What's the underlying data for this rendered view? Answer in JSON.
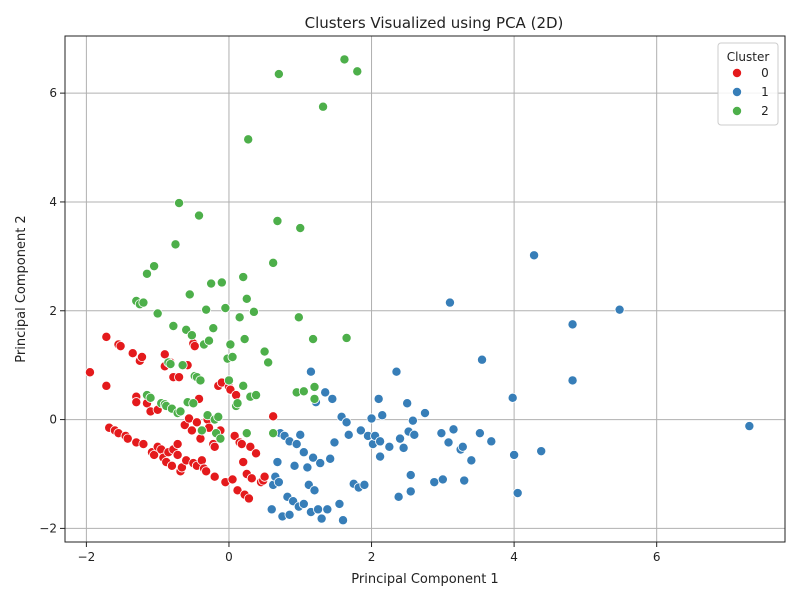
{
  "chart_data": {
    "type": "scatter",
    "title": "Clusters Visualized using PCA (2D)",
    "xlabel": "Principal Component 1",
    "ylabel": "Principal Component 2",
    "xlim": [
      -2.3,
      7.8
    ],
    "ylim": [
      -2.25,
      7.05
    ],
    "xticks": [
      -2,
      0,
      2,
      4,
      6
    ],
    "yticks": [
      -2,
      0,
      2,
      4,
      6
    ],
    "grid": true,
    "legend": {
      "title": "Cluster",
      "position": "top-right"
    },
    "series": [
      {
        "name": "0",
        "color": "#e41a1c",
        "points": [
          [
            -1.95,
            0.87
          ],
          [
            -1.72,
            1.52
          ],
          [
            -1.72,
            0.62
          ],
          [
            -1.68,
            -0.15
          ],
          [
            -1.6,
            -0.2
          ],
          [
            -1.55,
            1.38
          ],
          [
            -1.52,
            1.35
          ],
          [
            -1.55,
            -0.25
          ],
          [
            -1.45,
            -0.3
          ],
          [
            -1.42,
            -0.35
          ],
          [
            -1.35,
            1.22
          ],
          [
            -1.3,
            0.42
          ],
          [
            -1.3,
            0.32
          ],
          [
            -1.3,
            -0.42
          ],
          [
            -1.25,
            1.08
          ],
          [
            -1.22,
            1.15
          ],
          [
            -1.2,
            -0.45
          ],
          [
            -1.15,
            0.3
          ],
          [
            -1.1,
            0.15
          ],
          [
            -1.08,
            -0.6
          ],
          [
            -1.05,
            -0.65
          ],
          [
            -1.0,
            -0.5
          ],
          [
            -1.0,
            0.18
          ],
          [
            -0.95,
            -0.55
          ],
          [
            -0.92,
            -0.7
          ],
          [
            -0.9,
            1.2
          ],
          [
            -0.9,
            0.98
          ],
          [
            -0.88,
            -0.78
          ],
          [
            -0.85,
            -0.6
          ],
          [
            -0.82,
            1.05
          ],
          [
            -0.8,
            -0.85
          ],
          [
            -0.78,
            0.78
          ],
          [
            -0.78,
            -0.55
          ],
          [
            -0.72,
            -0.45
          ],
          [
            -0.72,
            -0.65
          ],
          [
            -0.7,
            0.78
          ],
          [
            -0.68,
            -0.95
          ],
          [
            -0.66,
            -0.88
          ],
          [
            -0.62,
            -0.1
          ],
          [
            -0.6,
            -0.75
          ],
          [
            -0.58,
            1.0
          ],
          [
            -0.56,
            0.02
          ],
          [
            -0.52,
            -0.2
          ],
          [
            -0.5,
            1.4
          ],
          [
            -0.48,
            1.35
          ],
          [
            -0.5,
            -0.8
          ],
          [
            -0.45,
            -0.05
          ],
          [
            -0.45,
            -0.85
          ],
          [
            -0.42,
            0.38
          ],
          [
            -0.4,
            -0.35
          ],
          [
            -0.38,
            -0.75
          ],
          [
            -0.35,
            -0.9
          ],
          [
            -0.32,
            -0.95
          ],
          [
            -0.3,
            0.0
          ],
          [
            -0.28,
            -0.15
          ],
          [
            -0.22,
            -0.45
          ],
          [
            -0.2,
            -0.5
          ],
          [
            -0.2,
            -1.05
          ],
          [
            -0.15,
            0.62
          ],
          [
            -0.12,
            -0.2
          ],
          [
            -0.1,
            0.68
          ],
          [
            -0.05,
            -1.15
          ],
          [
            0.0,
            0.6
          ],
          [
            0.02,
            0.55
          ],
          [
            0.05,
            -1.1
          ],
          [
            0.08,
            -0.3
          ],
          [
            0.1,
            0.45
          ],
          [
            0.12,
            -1.3
          ],
          [
            0.15,
            -0.42
          ],
          [
            0.18,
            -0.45
          ],
          [
            0.2,
            -0.78
          ],
          [
            0.22,
            -1.38
          ],
          [
            0.25,
            -1.0
          ],
          [
            0.28,
            -1.45
          ],
          [
            0.3,
            -0.5
          ],
          [
            0.32,
            -1.08
          ],
          [
            0.38,
            -0.62
          ],
          [
            0.45,
            -1.15
          ],
          [
            0.48,
            -1.12
          ],
          [
            0.5,
            -1.05
          ],
          [
            0.62,
            0.06
          ]
        ]
      },
      {
        "name": "1",
        "color": "#377eb8",
        "points": [
          [
            0.6,
            -1.65
          ],
          [
            0.62,
            -1.2
          ],
          [
            0.65,
            -1.05
          ],
          [
            0.68,
            -0.78
          ],
          [
            0.7,
            -1.15
          ],
          [
            0.72,
            -0.25
          ],
          [
            0.75,
            -1.78
          ],
          [
            0.78,
            -0.3
          ],
          [
            0.82,
            -1.42
          ],
          [
            0.85,
            -0.4
          ],
          [
            0.85,
            -1.75
          ],
          [
            0.9,
            -1.5
          ],
          [
            0.92,
            -0.85
          ],
          [
            0.95,
            -0.45
          ],
          [
            0.98,
            -1.6
          ],
          [
            1.0,
            -0.28
          ],
          [
            1.05,
            -1.55
          ],
          [
            1.05,
            -0.6
          ],
          [
            1.1,
            -0.88
          ],
          [
            1.12,
            -1.2
          ],
          [
            1.15,
            -1.7
          ],
          [
            1.15,
            0.88
          ],
          [
            1.18,
            -0.7
          ],
          [
            1.2,
            -1.3
          ],
          [
            1.22,
            0.32
          ],
          [
            1.25,
            -1.65
          ],
          [
            1.28,
            -0.8
          ],
          [
            1.3,
            -1.82
          ],
          [
            1.35,
            0.5
          ],
          [
            1.38,
            -1.65
          ],
          [
            1.42,
            -0.72
          ],
          [
            1.45,
            0.38
          ],
          [
            1.48,
            -0.42
          ],
          [
            1.55,
            -1.55
          ],
          [
            1.58,
            0.05
          ],
          [
            1.6,
            -1.85
          ],
          [
            1.65,
            -0.05
          ],
          [
            1.68,
            -0.28
          ],
          [
            1.75,
            -1.18
          ],
          [
            1.82,
            -1.25
          ],
          [
            1.85,
            -0.2
          ],
          [
            1.9,
            -1.2
          ],
          [
            1.95,
            -0.3
          ],
          [
            2.0,
            0.02
          ],
          [
            2.02,
            -0.45
          ],
          [
            2.05,
            -0.3
          ],
          [
            2.1,
            0.38
          ],
          [
            2.12,
            -0.4
          ],
          [
            2.12,
            -0.68
          ],
          [
            2.15,
            0.08
          ],
          [
            2.25,
            -0.5
          ],
          [
            2.35,
            0.88
          ],
          [
            2.38,
            -1.42
          ],
          [
            2.4,
            -0.35
          ],
          [
            2.45,
            -0.52
          ],
          [
            2.5,
            0.3
          ],
          [
            2.52,
            -0.22
          ],
          [
            2.55,
            -1.32
          ],
          [
            2.55,
            -1.02
          ],
          [
            2.58,
            -0.02
          ],
          [
            2.6,
            -0.28
          ],
          [
            2.75,
            0.12
          ],
          [
            2.88,
            -1.15
          ],
          [
            2.98,
            -0.25
          ],
          [
            3.0,
            -1.1
          ],
          [
            3.08,
            -0.42
          ],
          [
            3.1,
            2.15
          ],
          [
            3.15,
            -0.18
          ],
          [
            3.25,
            -0.55
          ],
          [
            3.28,
            -0.5
          ],
          [
            3.3,
            -1.12
          ],
          [
            3.4,
            -0.75
          ],
          [
            3.52,
            -0.25
          ],
          [
            3.55,
            1.1
          ],
          [
            3.68,
            -0.4
          ],
          [
            3.98,
            0.4
          ],
          [
            4.0,
            -0.65
          ],
          [
            4.05,
            -1.35
          ],
          [
            4.28,
            3.02
          ],
          [
            4.38,
            -0.58
          ],
          [
            4.82,
            1.75
          ],
          [
            4.82,
            0.72
          ],
          [
            5.48,
            2.02
          ],
          [
            7.3,
            -0.12
          ]
        ]
      },
      {
        "name": "2",
        "color": "#4daf4a",
        "points": [
          [
            -1.3,
            2.18
          ],
          [
            -1.25,
            2.12
          ],
          [
            -1.2,
            2.15
          ],
          [
            -1.15,
            2.68
          ],
          [
            -1.15,
            0.45
          ],
          [
            -1.1,
            0.4
          ],
          [
            -1.05,
            2.82
          ],
          [
            -1.0,
            1.95
          ],
          [
            -0.95,
            0.3
          ],
          [
            -0.9,
            0.28
          ],
          [
            -0.88,
            0.25
          ],
          [
            -0.85,
            1.05
          ],
          [
            -0.82,
            1.02
          ],
          [
            -0.8,
            0.2
          ],
          [
            -0.78,
            1.72
          ],
          [
            -0.75,
            3.22
          ],
          [
            -0.72,
            0.12
          ],
          [
            -0.7,
            3.98
          ],
          [
            -0.68,
            0.15
          ],
          [
            -0.65,
            1.0
          ],
          [
            -0.6,
            1.65
          ],
          [
            -0.58,
            0.32
          ],
          [
            -0.55,
            2.3
          ],
          [
            -0.52,
            1.55
          ],
          [
            -0.5,
            0.3
          ],
          [
            -0.48,
            0.8
          ],
          [
            -0.45,
            0.78
          ],
          [
            -0.42,
            3.75
          ],
          [
            -0.4,
            0.72
          ],
          [
            -0.38,
            -0.2
          ],
          [
            -0.35,
            1.38
          ],
          [
            -0.32,
            2.02
          ],
          [
            -0.3,
            0.08
          ],
          [
            -0.28,
            1.45
          ],
          [
            -0.25,
            2.5
          ],
          [
            -0.22,
            1.68
          ],
          [
            -0.2,
            0.0
          ],
          [
            -0.18,
            -0.25
          ],
          [
            -0.15,
            0.05
          ],
          [
            -0.12,
            -0.35
          ],
          [
            -0.1,
            2.52
          ],
          [
            -0.05,
            2.05
          ],
          [
            -0.02,
            1.12
          ],
          [
            0.0,
            0.72
          ],
          [
            0.02,
            1.38
          ],
          [
            0.05,
            1.15
          ],
          [
            0.1,
            0.25
          ],
          [
            0.12,
            0.3
          ],
          [
            0.15,
            1.88
          ],
          [
            0.2,
            2.62
          ],
          [
            0.2,
            0.62
          ],
          [
            0.22,
            1.48
          ],
          [
            0.25,
            2.22
          ],
          [
            0.25,
            -0.25
          ],
          [
            0.27,
            5.15
          ],
          [
            0.3,
            0.42
          ],
          [
            0.35,
            1.98
          ],
          [
            0.38,
            0.45
          ],
          [
            0.5,
            1.25
          ],
          [
            0.55,
            1.05
          ],
          [
            0.62,
            2.88
          ],
          [
            0.62,
            -0.25
          ],
          [
            0.68,
            3.65
          ],
          [
            0.7,
            6.35
          ],
          [
            0.95,
            0.5
          ],
          [
            0.98,
            1.88
          ],
          [
            1.0,
            3.52
          ],
          [
            1.05,
            0.52
          ],
          [
            1.18,
            1.48
          ],
          [
            1.2,
            0.6
          ],
          [
            1.2,
            0.38
          ],
          [
            1.32,
            5.75
          ],
          [
            1.62,
            6.62
          ],
          [
            1.65,
            1.5
          ],
          [
            1.8,
            6.4
          ]
        ]
      }
    ]
  }
}
